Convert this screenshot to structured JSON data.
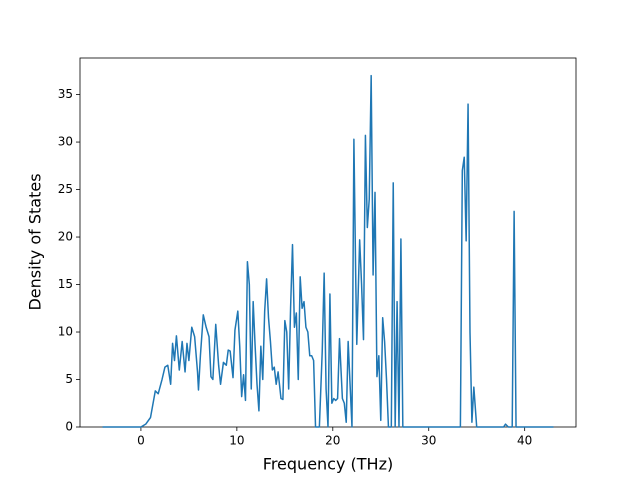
{
  "chart_data": {
    "type": "line",
    "xlabel": "Frequency (THz)",
    "ylabel": "Density of States",
    "color": "#1f77b4",
    "x": [
      -4,
      0,
      0.5,
      1,
      1.5,
      1.8,
      2.2,
      2.5,
      2.8,
      3.1,
      3.3,
      3.5,
      3.7,
      4,
      4.3,
      4.6,
      4.8,
      5,
      5.3,
      5.6,
      5.9,
      6,
      6.2,
      6.5,
      6.8,
      7.1,
      7.3,
      7.5,
      7.8,
      8.1,
      8.3,
      8.6,
      8.9,
      9.1,
      9.3,
      9.6,
      9.8,
      10.1,
      10.3,
      10.5,
      10.7,
      10.9,
      11.1,
      11.3,
      11.5,
      11.7,
      11.9,
      12.1,
      12.3,
      12.5,
      12.7,
      12.9,
      13.1,
      13.3,
      13.5,
      13.7,
      13.9,
      14.1,
      14.3,
      14.6,
      14.8,
      15,
      15.2,
      15.4,
      15.6,
      15.8,
      16,
      16.2,
      16.4,
      16.6,
      16.8,
      17,
      17.2,
      17.4,
      17.6,
      17.8,
      18,
      18.2,
      18.6,
      18.9,
      19.1,
      19.3,
      19.5,
      19.7,
      19.9,
      20.1,
      20.3,
      20.5,
      20.7,
      21,
      21.2,
      21.4,
      21.6,
      22,
      22.2,
      22.4,
      22.5,
      22.8,
      23,
      23.2,
      23.4,
      23.6,
      23.8,
      24,
      24.2,
      24.4,
      24.6,
      24.8,
      25,
      25.2,
      25.4,
      25.6,
      25.8,
      26.1,
      26.3,
      26.5,
      26.7,
      26.9,
      27.1,
      27.3,
      33.3,
      33.5,
      33.7,
      33.9,
      34.1,
      34.3,
      34.5,
      34.7,
      35,
      37.8,
      38,
      38.3,
      38.7,
      38.9,
      39.1,
      43
    ],
    "values": [
      0,
      0,
      0.3,
      1,
      3.8,
      3.5,
      5,
      6.3,
      6.5,
      4.5,
      8.8,
      7,
      9.6,
      6,
      9,
      5.8,
      8.8,
      7,
      10.5,
      9.5,
      5.8,
      3.9,
      7.5,
      11.8,
      10.5,
      9.5,
      5.3,
      5,
      10.8,
      6.5,
      4.5,
      6.8,
      6.5,
      8.1,
      8,
      5.2,
      10.2,
      12.2,
      8.5,
      3.2,
      5.5,
      2.8,
      17.4,
      15,
      4,
      13.2,
      8.6,
      4.5,
      1.7,
      8.5,
      5,
      12.2,
      15.6,
      11.5,
      9,
      6,
      6.3,
      4.5,
      5.8,
      3,
      2.9,
      11.2,
      10,
      4,
      12.5,
      19.2,
      10.5,
      12,
      5,
      15.8,
      12.5,
      13.2,
      10.5,
      10,
      7.5,
      7.5,
      7,
      0,
      0,
      8,
      16.2,
      4,
      0,
      14,
      2.5,
      3,
      2.8,
      3,
      9.3,
      3,
      2.5,
      0.5,
      9,
      0,
      30.3,
      15,
      8.7,
      19.7,
      15,
      9.2,
      30.7,
      21,
      24,
      37,
      16,
      24.7,
      5.3,
      7.5,
      0.7,
      11.5,
      9,
      5,
      0,
      0,
      25.7,
      0,
      13.2,
      0,
      19.8,
      0,
      0,
      27,
      28.4,
      19.6,
      34,
      10,
      0.5,
      4.2,
      0,
      0,
      0.3,
      0,
      0,
      22.7,
      0,
      0
    ],
    "xlim": [
      -6.35,
      45.35
    ],
    "xticks": [
      0,
      10,
      20,
      30,
      40
    ],
    "ylim": [
      0,
      38.85
    ],
    "yticks": [
      0,
      5,
      10,
      15,
      20,
      25,
      30,
      35
    ]
  }
}
